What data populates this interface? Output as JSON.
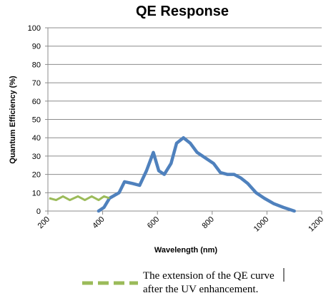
{
  "chart_data": {
    "type": "line",
    "title": "QE Response",
    "xlabel": "Wavelength (nm)",
    "ylabel": "Quantum Efficiency (%)",
    "xlim": [
      200,
      1200
    ],
    "ylim": [
      0,
      100
    ],
    "x_ticks": [
      "200",
      "400",
      "600",
      "800",
      "1000",
      "1200"
    ],
    "y_ticks": [
      "0",
      "10",
      "20",
      "30",
      "40",
      "50",
      "60",
      "70",
      "80",
      "90",
      "100"
    ],
    "grid": "horizontal",
    "series": [
      {
        "color": "#4f81bd",
        "style": "solid",
        "points": [
          [
            385,
            0
          ],
          [
            405,
            2
          ],
          [
            425,
            7
          ],
          [
            460,
            10
          ],
          [
            480,
            16
          ],
          [
            510,
            15
          ],
          [
            535,
            14
          ],
          [
            560,
            22
          ],
          [
            585,
            32
          ],
          [
            605,
            22
          ],
          [
            625,
            20
          ],
          [
            650,
            26
          ],
          [
            670,
            37
          ],
          [
            695,
            40
          ],
          [
            720,
            37
          ],
          [
            745,
            32
          ],
          [
            775,
            29
          ],
          [
            805,
            26
          ],
          [
            830,
            21
          ],
          [
            855,
            20
          ],
          [
            880,
            20
          ],
          [
            905,
            18
          ],
          [
            930,
            15
          ],
          [
            960,
            10
          ],
          [
            990,
            7
          ],
          [
            1025,
            4
          ],
          [
            1060,
            2
          ],
          [
            1100,
            0
          ]
        ]
      },
      {
        "color": "#9bbb59",
        "style": "dashed",
        "points": [
          [
            205,
            7
          ],
          [
            230,
            6
          ],
          [
            255,
            8
          ],
          [
            280,
            6
          ],
          [
            310,
            8
          ],
          [
            335,
            6
          ],
          [
            360,
            8
          ],
          [
            385,
            6
          ],
          [
            405,
            8
          ],
          [
            425,
            7
          ]
        ]
      }
    ],
    "legend": {
      "placement": "bottom",
      "color": "#9bbb59",
      "style": "dashed",
      "lines": [
        "The extension of the QE curve",
        "after the UV enhancement."
      ]
    }
  }
}
